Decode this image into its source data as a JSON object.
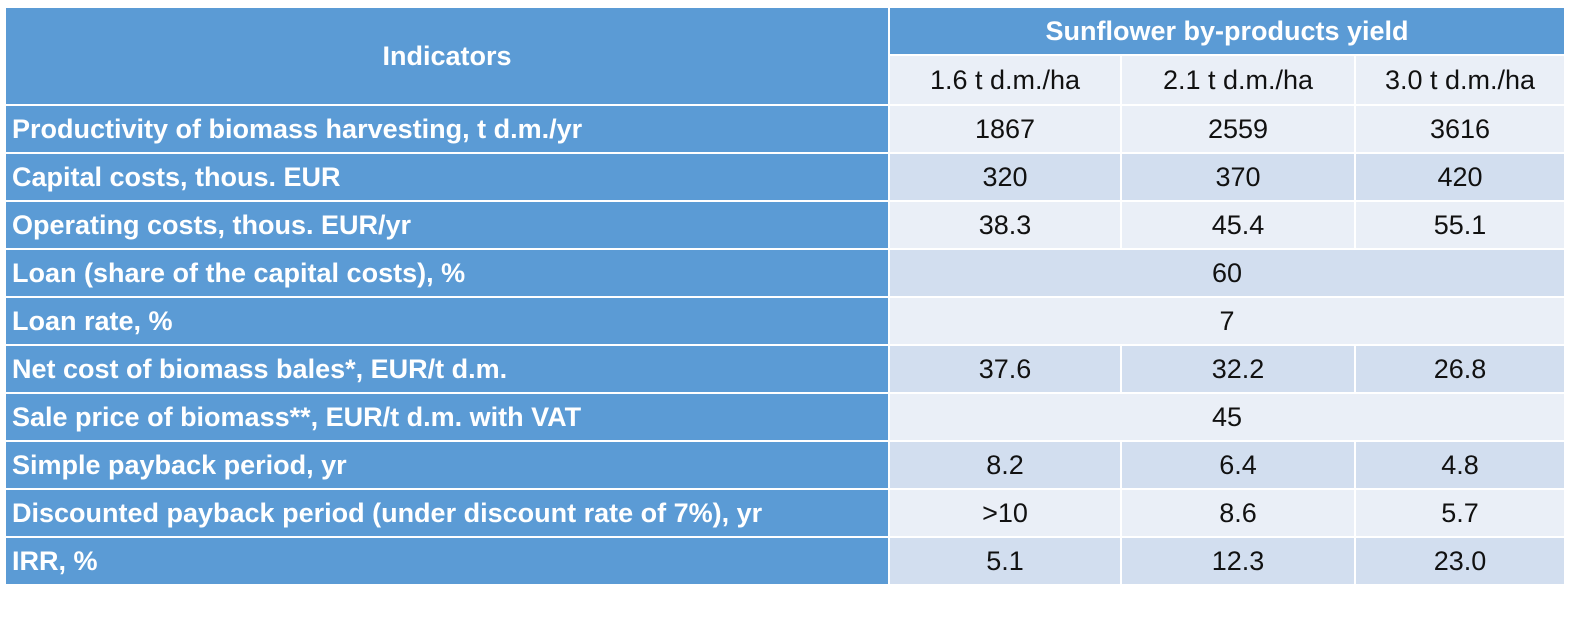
{
  "header": {
    "indicators": "Indicators",
    "group": "Sunflower by-products yield",
    "columns": [
      "1.6 t d.m./ha",
      "2.1 t d.m./ha",
      "3.0 t d.m./ha"
    ]
  },
  "rows": [
    {
      "label": "Productivity of biomass harvesting, t d.m./yr",
      "values": [
        "1867",
        "2559",
        "3616"
      ]
    },
    {
      "label": "Capital costs, thous. EUR",
      "values": [
        "320",
        "370",
        "420"
      ]
    },
    {
      "label": "Operating costs, thous. EUR/yr",
      "values": [
        "38.3",
        "45.4",
        "55.1"
      ]
    },
    {
      "label": "Loan (share of the capital costs), %",
      "values": [
        "60"
      ]
    },
    {
      "label": "Loan rate, %",
      "values": [
        "7"
      ]
    },
    {
      "label": "Net cost of biomass bales*, EUR/t d.m.",
      "values": [
        "37.6",
        "32.2",
        "26.8"
      ]
    },
    {
      "label": "Sale price of biomass**, EUR/t d.m. with VAT",
      "values": [
        "45"
      ]
    },
    {
      "label": "Simple payback period, yr",
      "values": [
        "8.2",
        "6.4",
        "4.8"
      ]
    },
    {
      "label": "Discounted payback period (under discount rate of 7%), yr",
      "values": [
        ">10",
        "8.6",
        "5.7"
      ]
    },
    {
      "label": "IRR, %",
      "values": [
        "5.1",
        "12.3",
        "23.0"
      ]
    }
  ]
}
